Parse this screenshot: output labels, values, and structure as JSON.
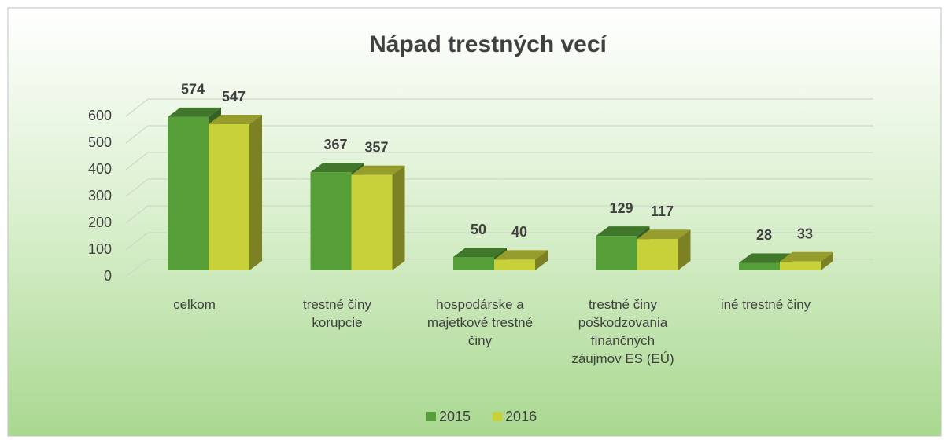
{
  "chart_data": {
    "type": "bar3d",
    "title": "Nápad trestných vecí",
    "categories": [
      "celkom",
      "trestné činy korupcie",
      "hospodárske a majetkové trestné činy",
      "trestné činy poškodzovania finančných záujmov ES (EÚ)",
      "iné trestné činy"
    ],
    "series": [
      {
        "name": "2015",
        "color": "#559e38",
        "values": [
          574,
          367,
          50,
          129,
          28
        ]
      },
      {
        "name": "2016",
        "color": "#c8d13a",
        "values": [
          547,
          357,
          40,
          117,
          33
        ]
      }
    ],
    "ylim": [
      0,
      600
    ],
    "yticks": [
      0,
      100,
      200,
      300,
      400,
      500,
      600
    ],
    "grid": true,
    "legend": "bottom"
  }
}
